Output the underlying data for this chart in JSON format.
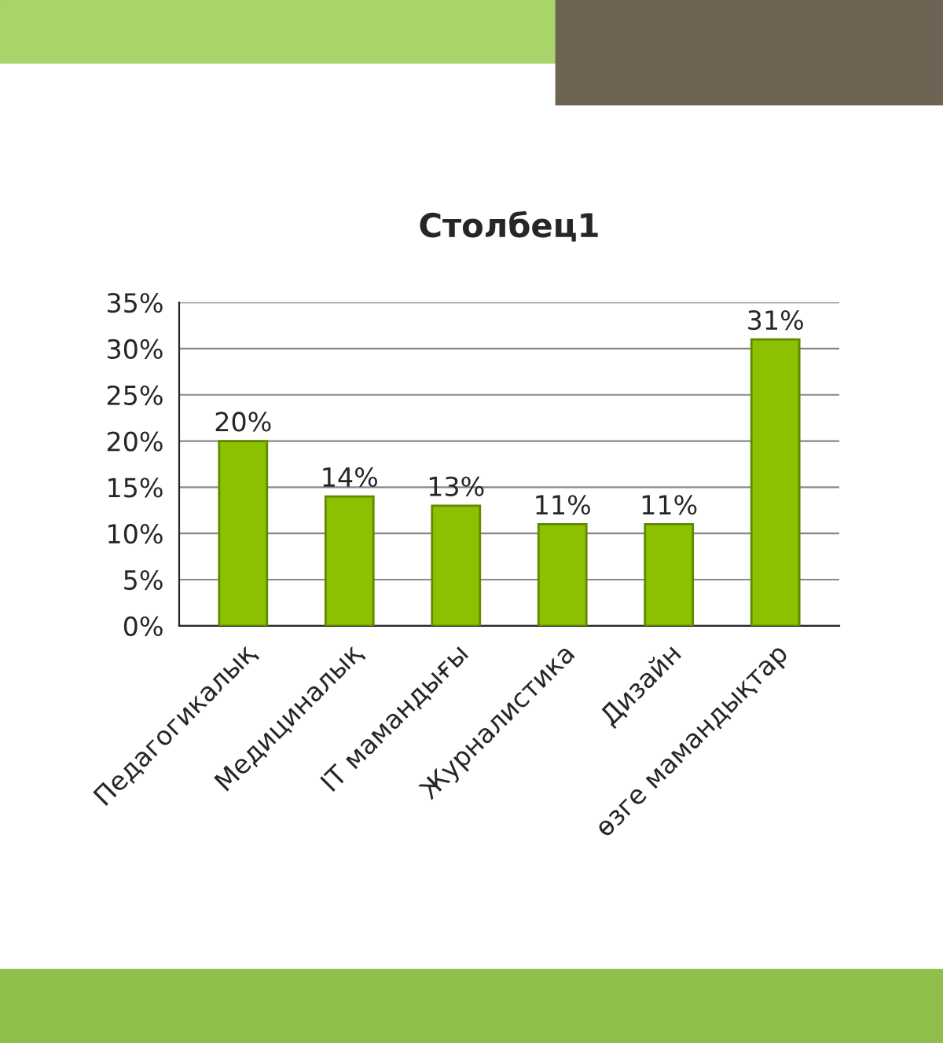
{
  "chart_data": {
    "type": "bar",
    "title": "Столбец1",
    "categories": [
      "Педагогикалық",
      "Медициналық",
      "IT мамандығы",
      "Журналистика",
      "Дизайн",
      "өзге мамандықтар"
    ],
    "values": [
      20,
      14,
      13,
      11,
      11,
      31
    ],
    "color": "#8cc000",
    "value_labels": [
      "20%",
      "14%",
      "13%",
      "11%",
      "11%",
      "31%"
    ],
    "ylim": [
      0,
      35
    ],
    "yticks": [
      {
        "value": 0,
        "label": "0%"
      },
      {
        "value": 5,
        "label": "5%"
      },
      {
        "value": 10,
        "label": "10%"
      },
      {
        "value": 15,
        "label": "15%"
      },
      {
        "value": 20,
        "label": "20%"
      },
      {
        "value": 25,
        "label": "25%"
      },
      {
        "value": 30,
        "label": "30%"
      },
      {
        "value": 35,
        "label": "35%"
      }
    ],
    "grid": "y"
  }
}
